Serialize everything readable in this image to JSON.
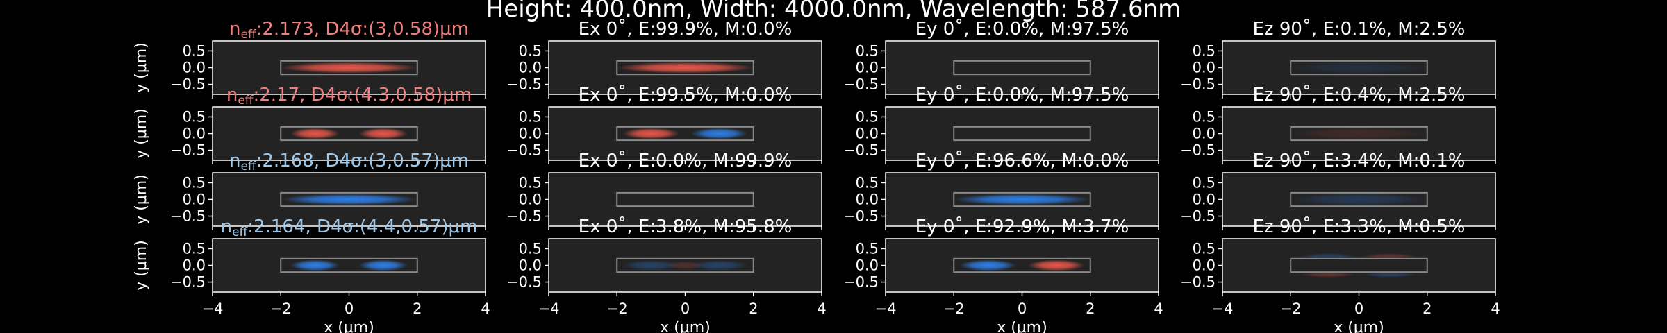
{
  "figure": {
    "suptitle": "Height: 400.0nm, Width: 4000.0nm, Wavelength: 587.6nm",
    "background": "#000000",
    "axes_facecolor": "#232323",
    "positive_color": "#e8574a",
    "negative_color": "#2f7fe8",
    "waveguide_outline_color": "#8a8a8a"
  },
  "chart_data": {
    "type": "heatmap",
    "rows": [
      {
        "mode_label_prefix": "n",
        "mode_label_sub": "eff",
        "mode_label_rest": ":2.173, D4σ:(3,0.58)μm",
        "mode_label_color": "#f07f7f",
        "panels": [
          {
            "title": "",
            "field": "intensity",
            "pattern": "single",
            "sign": 1,
            "amplitude": 1.0
          },
          {
            "title": "Ex 0˚, E:99.9%, M:0.0%",
            "field": "Ex",
            "pattern": "single",
            "sign": 1,
            "amplitude": 1.0
          },
          {
            "title": "Ey 0˚, E:0.0%, M:97.5%",
            "field": "Ey",
            "pattern": "none",
            "sign": 1,
            "amplitude": 0.0
          },
          {
            "title": "Ez 90˚, E:0.1%, M:2.5%",
            "field": "Ez",
            "pattern": "faint",
            "sign": -1,
            "amplitude": 0.15
          }
        ]
      },
      {
        "mode_label_prefix": "n",
        "mode_label_sub": "eff",
        "mode_label_rest": ":2.17, D4σ:(4.3,0.58)μm",
        "mode_label_color": "#f07f7f",
        "panels": [
          {
            "title": "",
            "field": "intensity",
            "pattern": "double",
            "sign": 1,
            "amplitude": 1.0
          },
          {
            "title": "Ex 0˚, E:99.5%, M:0.0%",
            "field": "Ex",
            "pattern": "double-anti",
            "sign": 1,
            "amplitude": 1.0
          },
          {
            "title": "Ey 0˚, E:0.0%, M:97.5%",
            "field": "Ey",
            "pattern": "none",
            "sign": 1,
            "amplitude": 0.0
          },
          {
            "title": "Ez 90˚, E:0.4%, M:2.5%",
            "field": "Ez",
            "pattern": "faint",
            "sign": 1,
            "amplitude": 0.12
          }
        ]
      },
      {
        "mode_label_prefix": "n",
        "mode_label_sub": "eff",
        "mode_label_rest": ":2.168, D4σ:(3,0.57)μm",
        "mode_label_color": "#9fc8e8",
        "panels": [
          {
            "title": "",
            "field": "intensity",
            "pattern": "single",
            "sign": -1,
            "amplitude": 1.0
          },
          {
            "title": "Ex 0˚, E:0.0%, M:99.9%",
            "field": "Ex",
            "pattern": "none",
            "sign": 1,
            "amplitude": 0.0
          },
          {
            "title": "Ey 0˚, E:96.6%, M:0.0%",
            "field": "Ey",
            "pattern": "single",
            "sign": -1,
            "amplitude": 1.0
          },
          {
            "title": "Ez 90˚, E:3.4%, M:0.1%",
            "field": "Ez",
            "pattern": "faint",
            "sign": -1,
            "amplitude": 0.25
          }
        ]
      },
      {
        "mode_label_prefix": "n",
        "mode_label_sub": "eff",
        "mode_label_rest": ":2.164, D4σ:(4.4,0.57)μm",
        "mode_label_color": "#9fc8e8",
        "panels": [
          {
            "title": "",
            "field": "intensity",
            "pattern": "double",
            "sign": -1,
            "amplitude": 1.0
          },
          {
            "title": "Ex 0˚, E:3.8%, M:95.8%",
            "field": "Ex",
            "pattern": "faint-anti",
            "sign": -1,
            "amplitude": 0.35
          },
          {
            "title": "Ey 0˚, E:92.9%, M:3.7%",
            "field": "Ey",
            "pattern": "double-anti",
            "sign": -1,
            "amplitude": 1.0
          },
          {
            "title": "Ez 90˚, E:3.3%, M:0.5%",
            "field": "Ez",
            "pattern": "quad",
            "sign": -1,
            "amplitude": 0.3
          }
        ]
      }
    ],
    "x_range": [
      -4,
      4
    ],
    "y_range": [
      -0.8,
      0.8
    ],
    "x_ticks": [
      "−4",
      "−2",
      "0",
      "2",
      "4"
    ],
    "x_tick_values": [
      -4,
      -2,
      0,
      2,
      4
    ],
    "y_ticks": [
      "0.5",
      "0.0",
      "−0.5"
    ],
    "y_tick_values": [
      0.5,
      0.0,
      -0.5
    ],
    "ylabel": "y (μm)",
    "xlabel": "x (μm)",
    "waveguide_x": [
      -2,
      2
    ],
    "waveguide_y": [
      -0.2,
      0.2
    ],
    "grid": false
  }
}
